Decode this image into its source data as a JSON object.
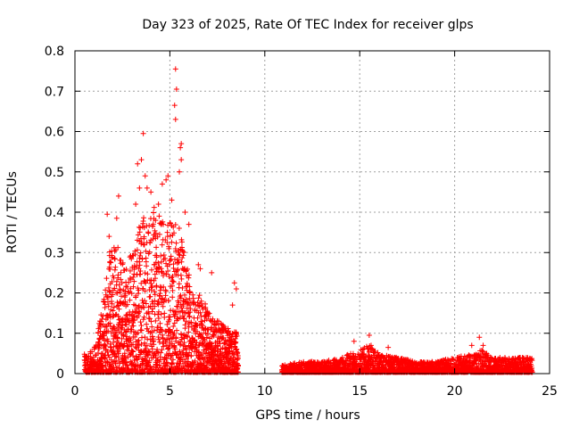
{
  "chart_data": {
    "type": "scatter",
    "title": "Day 323 of 2025, Rate Of TEC Index for receiver glps",
    "xlabel": "GPS time / hours",
    "ylabel": "ROTI / TECUs",
    "xlim": [
      0,
      25
    ],
    "ylim": [
      0,
      0.8
    ],
    "xticks": [
      0,
      5,
      10,
      15,
      20,
      25
    ],
    "yticks": [
      0,
      0.1,
      0.2,
      0.3,
      0.4,
      0.5,
      0.6,
      0.7,
      0.8
    ],
    "grid": true,
    "marker": "plus",
    "colors": {
      "points": "#ff0000",
      "grid": "#a0a0a0",
      "axes": "#000000"
    },
    "segments": [
      {
        "x_start": 0.5,
        "x_end": 8.6,
        "envelope": [
          [
            0.5,
            0.05
          ],
          [
            1.0,
            0.06
          ],
          [
            1.5,
            0.18
          ],
          [
            1.8,
            0.3
          ],
          [
            2.2,
            0.32
          ],
          [
            2.6,
            0.28
          ],
          [
            3.0,
            0.3
          ],
          [
            3.4,
            0.38
          ],
          [
            3.8,
            0.4
          ],
          [
            4.2,
            0.42
          ],
          [
            4.6,
            0.38
          ],
          [
            5.0,
            0.4
          ],
          [
            5.4,
            0.38
          ],
          [
            5.8,
            0.3
          ],
          [
            6.2,
            0.22
          ],
          [
            6.6,
            0.2
          ],
          [
            7.0,
            0.16
          ],
          [
            7.5,
            0.14
          ],
          [
            8.0,
            0.12
          ],
          [
            8.6,
            0.1
          ]
        ]
      },
      {
        "x_start": 10.9,
        "x_end": 24.1,
        "envelope": [
          [
            10.9,
            0.02
          ],
          [
            12.0,
            0.03
          ],
          [
            13.0,
            0.03
          ],
          [
            14.0,
            0.04
          ],
          [
            14.5,
            0.05
          ],
          [
            15.0,
            0.06
          ],
          [
            15.5,
            0.07
          ],
          [
            16.0,
            0.05
          ],
          [
            17.0,
            0.04
          ],
          [
            18.0,
            0.03
          ],
          [
            19.0,
            0.03
          ],
          [
            20.0,
            0.04
          ],
          [
            21.0,
            0.05
          ],
          [
            21.5,
            0.06
          ],
          [
            22.0,
            0.04
          ],
          [
            23.0,
            0.04
          ],
          [
            24.1,
            0.04
          ]
        ]
      }
    ],
    "outliers": [
      {
        "x": 5.3,
        "y": 0.755
      },
      {
        "x": 5.35,
        "y": 0.705
      },
      {
        "x": 5.25,
        "y": 0.665
      },
      {
        "x": 5.3,
        "y": 0.63
      },
      {
        "x": 3.6,
        "y": 0.595
      },
      {
        "x": 5.6,
        "y": 0.57
      },
      {
        "x": 5.55,
        "y": 0.56
      },
      {
        "x": 3.3,
        "y": 0.52
      },
      {
        "x": 3.5,
        "y": 0.53
      },
      {
        "x": 5.6,
        "y": 0.53
      },
      {
        "x": 4.9,
        "y": 0.49
      },
      {
        "x": 4.8,
        "y": 0.48
      },
      {
        "x": 3.7,
        "y": 0.49
      },
      {
        "x": 5.5,
        "y": 0.5
      },
      {
        "x": 4.6,
        "y": 0.47
      },
      {
        "x": 3.8,
        "y": 0.46
      },
      {
        "x": 3.4,
        "y": 0.46
      },
      {
        "x": 2.3,
        "y": 0.44
      },
      {
        "x": 2.2,
        "y": 0.385
      },
      {
        "x": 1.7,
        "y": 0.395
      },
      {
        "x": 4.0,
        "y": 0.45
      },
      {
        "x": 5.8,
        "y": 0.4
      },
      {
        "x": 6.0,
        "y": 0.37
      },
      {
        "x": 1.8,
        "y": 0.34
      },
      {
        "x": 3.2,
        "y": 0.42
      },
      {
        "x": 5.1,
        "y": 0.43
      },
      {
        "x": 4.4,
        "y": 0.42
      },
      {
        "x": 6.5,
        "y": 0.27
      },
      {
        "x": 6.6,
        "y": 0.26
      },
      {
        "x": 8.4,
        "y": 0.225
      },
      {
        "x": 8.5,
        "y": 0.21
      },
      {
        "x": 8.3,
        "y": 0.17
      },
      {
        "x": 7.2,
        "y": 0.25
      },
      {
        "x": 15.5,
        "y": 0.095
      },
      {
        "x": 21.3,
        "y": 0.09
      },
      {
        "x": 14.7,
        "y": 0.08
      },
      {
        "x": 16.5,
        "y": 0.065
      },
      {
        "x": 20.9,
        "y": 0.07
      },
      {
        "x": 21.5,
        "y": 0.07
      },
      {
        "x": 15.6,
        "y": 0.07
      }
    ]
  }
}
